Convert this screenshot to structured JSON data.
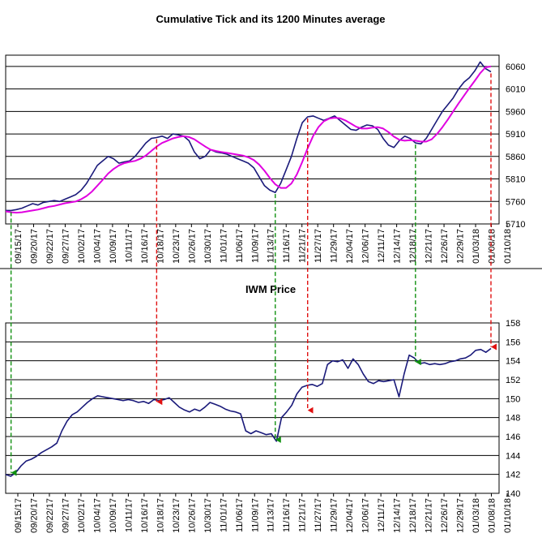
{
  "colors": {
    "tick_line": "#1a1a7a",
    "average_line": "#e000e0",
    "red_arrow": "#e01010",
    "green_arrow": "#109010"
  },
  "chart_data": [
    {
      "type": "line",
      "title": "Cumulative Tick and its 1200 Minutes average",
      "xlabel": "",
      "ylabel": "",
      "ylim": [
        5710,
        6085
      ],
      "y_ticks": [
        5710,
        5760,
        5810,
        5860,
        5910,
        5960,
        6010,
        6060
      ],
      "x_tick_labels": [
        "09/15/17",
        "09/20/17",
        "09/22/17",
        "09/27/17",
        "10/02/17",
        "10/04/17",
        "10/09/17",
        "10/11/17",
        "10/16/17",
        "10/18/17",
        "10/23/17",
        "10/26/17",
        "10/30/17",
        "11/01/17",
        "11/06/17",
        "11/09/17",
        "11/13/17",
        "11/16/17",
        "11/21/17",
        "11/27/17",
        "11/29/17",
        "12/04/17",
        "12/06/17",
        "12/11/17",
        "12/14/17",
        "12/18/17",
        "12/21/17",
        "12/26/17",
        "12/29/17",
        "01/03/18",
        "01/08/18",
        "01/10/18"
      ],
      "grid": true,
      "series": [
        {
          "values": [
            5740,
            5740,
            5742,
            5745,
            5750,
            5755,
            5752,
            5758,
            5760,
            5762,
            5760,
            5765,
            5770,
            5775,
            5785,
            5800,
            5820,
            5840,
            5850,
            5860,
            5855,
            5845,
            5848,
            5850,
            5860,
            5875,
            5890,
            5900,
            5902,
            5905,
            5900,
            5910,
            5908,
            5905,
            5895,
            5870,
            5855,
            5860,
            5875,
            5870,
            5868,
            5865,
            5860,
            5855,
            5850,
            5845,
            5835,
            5815,
            5795,
            5785,
            5780,
            5800,
            5830,
            5860,
            5900,
            5935,
            5948,
            5950,
            5945,
            5940,
            5945,
            5950,
            5940,
            5930,
            5920,
            5918,
            5925,
            5930,
            5928,
            5920,
            5900,
            5885,
            5880,
            5895,
            5905,
            5900,
            5890,
            5888,
            5900,
            5920,
            5940,
            5960,
            5975,
            5990,
            6010,
            6025,
            6035,
            6050,
            6070,
            6055,
            6048
          ]
        },
        {
          "values": [
            5738,
            5736,
            5735,
            5736,
            5738,
            5740,
            5742,
            5745,
            5748,
            5750,
            5753,
            5756,
            5758,
            5760,
            5765,
            5772,
            5782,
            5795,
            5808,
            5822,
            5832,
            5840,
            5845,
            5848,
            5850,
            5855,
            5862,
            5872,
            5882,
            5890,
            5895,
            5900,
            5903,
            5905,
            5903,
            5898,
            5890,
            5882,
            5875,
            5872,
            5870,
            5868,
            5866,
            5864,
            5862,
            5858,
            5852,
            5842,
            5828,
            5812,
            5798,
            5790,
            5790,
            5800,
            5820,
            5848,
            5878,
            5905,
            5925,
            5938,
            5944,
            5946,
            5945,
            5940,
            5933,
            5926,
            5922,
            5922,
            5924,
            5925,
            5922,
            5914,
            5904,
            5897,
            5895,
            5896,
            5895,
            5893,
            5893,
            5898,
            5910,
            5925,
            5942,
            5960,
            5978,
            5995,
            6012,
            6028,
            6045,
            6058,
            6060
          ]
        }
      ]
    },
    {
      "type": "line",
      "title": "IWM Price",
      "xlabel": "",
      "ylabel": "",
      "ylim": [
        140,
        158
      ],
      "y_ticks": [
        140,
        142,
        144,
        146,
        148,
        150,
        152,
        154,
        156,
        158
      ],
      "x_tick_labels": [
        "09/15/17",
        "09/20/17",
        "09/22/17",
        "09/27/17",
        "10/02/17",
        "10/04/17",
        "10/09/17",
        "10/11/17",
        "10/16/17",
        "10/18/17",
        "10/23/17",
        "10/26/17",
        "10/30/17",
        "11/01/17",
        "11/06/17",
        "11/09/17",
        "11/13/17",
        "11/16/17",
        "11/21/17",
        "11/27/17",
        "11/29/17",
        "12/04/17",
        "12/06/17",
        "12/11/17",
        "12/14/17",
        "12/18/17",
        "12/21/17",
        "12/26/17",
        "12/29/17",
        "01/03/18",
        "01/08/18",
        "01/10/18"
      ],
      "grid": true,
      "series": [
        {
          "values": [
            142.0,
            141.8,
            142.2,
            142.9,
            143.4,
            143.6,
            143.9,
            144.3,
            144.6,
            144.9,
            145.3,
            146.6,
            147.6,
            148.3,
            148.6,
            149.1,
            149.6,
            150.0,
            150.3,
            150.2,
            150.1,
            150.0,
            149.9,
            149.8,
            149.9,
            149.8,
            149.6,
            149.7,
            149.5,
            149.9,
            149.8,
            149.9,
            150.1,
            149.6,
            149.1,
            148.8,
            148.6,
            148.9,
            148.7,
            149.1,
            149.6,
            149.4,
            149.2,
            148.9,
            148.7,
            148.6,
            148.4,
            146.6,
            146.3,
            146.6,
            146.4,
            146.2,
            146.3,
            145.5,
            148.0,
            148.6,
            149.3,
            150.5,
            151.2,
            151.4,
            151.5,
            151.3,
            151.6,
            153.6,
            154.0,
            153.9,
            154.1,
            153.2,
            154.2,
            153.6,
            152.6,
            151.8,
            151.6,
            151.9,
            151.8,
            151.9,
            152.0,
            150.2,
            152.6,
            154.6,
            154.3,
            153.7,
            153.8,
            153.6,
            153.7,
            153.6,
            153.7,
            153.9,
            154.0,
            154.2,
            154.3,
            154.6,
            155.1,
            155.2,
            154.9,
            155.3
          ]
        }
      ]
    }
  ],
  "markers": [
    {
      "color": "red",
      "from_top_index": 28,
      "to_bottom_index": 28
    },
    {
      "color": "red",
      "from_top_index": 56,
      "to_bottom_index": 55
    },
    {
      "color": "red",
      "from_top_index": 90,
      "to_bottom_index": 95
    },
    {
      "color": "green",
      "from_top_index": 1,
      "to_bottom_index": 0
    },
    {
      "color": "green",
      "from_top_index": 50,
      "to_bottom_index": 53
    },
    {
      "color": "green",
      "from_top_index": 76,
      "to_bottom_index": 81
    }
  ]
}
